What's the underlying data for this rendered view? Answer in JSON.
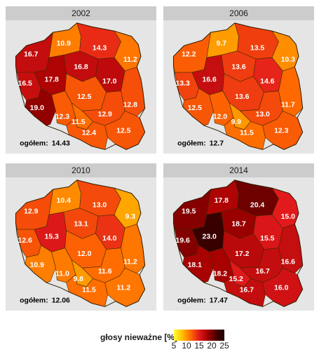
{
  "chart_data": [
    {
      "type": "heatmap",
      "title": "2002",
      "total_label": "ogółem:",
      "total_value": "14.43",
      "regions": [
        {
          "label": "16.7",
          "value": 16.7
        },
        {
          "label": "10.9",
          "value": 10.9
        },
        {
          "label": "14.3",
          "value": 14.3
        },
        {
          "label": "11.2",
          "value": 11.2
        },
        {
          "label": "16.5",
          "value": 16.5
        },
        {
          "label": "17.8",
          "value": 17.8
        },
        {
          "label": "16.8",
          "value": 16.8
        },
        {
          "label": "17.0",
          "value": 17.0
        },
        {
          "label": "12.5",
          "value": 12.5
        },
        {
          "label": "12.8",
          "value": 12.8
        },
        {
          "label": "19.0",
          "value": 19.0
        },
        {
          "label": "12.9",
          "value": 12.9
        },
        {
          "label": "12.3",
          "value": 12.3
        },
        {
          "label": "11.5",
          "value": 11.5
        },
        {
          "label": "12.4",
          "value": 12.4
        },
        {
          "label": "12.5",
          "value": 12.5
        }
      ]
    },
    {
      "type": "heatmap",
      "title": "2006",
      "total_label": "ogółem:",
      "total_value": "12.7",
      "regions": [
        {
          "label": "12.2",
          "value": 12.2
        },
        {
          "label": "9.7",
          "value": 9.7
        },
        {
          "label": "13.5",
          "value": 13.5
        },
        {
          "label": "10.3",
          "value": 10.3
        },
        {
          "label": "13.3",
          "value": 13.3
        },
        {
          "label": "16.6",
          "value": 16.6
        },
        {
          "label": "13.6",
          "value": 13.6
        },
        {
          "label": "14.6",
          "value": 14.6
        },
        {
          "label": "13.6",
          "value": 13.6
        },
        {
          "label": "11.7",
          "value": 11.7
        },
        {
          "label": "12.5",
          "value": 12.5
        },
        {
          "label": "13.0",
          "value": 13.0
        },
        {
          "label": "12.0",
          "value": 12.0
        },
        {
          "label": "9.9",
          "value": 9.9
        },
        {
          "label": "11.5",
          "value": 11.5
        },
        {
          "label": "12.3",
          "value": 12.3
        }
      ]
    },
    {
      "type": "heatmap",
      "title": "2010",
      "total_label": "ogółem:",
      "total_value": "12.06",
      "regions": [
        {
          "label": "12.9",
          "value": 12.9
        },
        {
          "label": "10.4",
          "value": 10.4
        },
        {
          "label": "13.0",
          "value": 13.0
        },
        {
          "label": "9.3",
          "value": 9.3
        },
        {
          "label": "12.6",
          "value": 12.6
        },
        {
          "label": "15.3",
          "value": 15.3
        },
        {
          "label": "13.1",
          "value": 13.1
        },
        {
          "label": "14.0",
          "value": 14.0
        },
        {
          "label": "12.0",
          "value": 12.0
        },
        {
          "label": "11.2",
          "value": 11.2
        },
        {
          "label": "10.9",
          "value": 10.9
        },
        {
          "label": "11.6",
          "value": 11.6
        },
        {
          "label": "11.0",
          "value": 11.0
        },
        {
          "label": "9.8",
          "value": 9.8
        },
        {
          "label": "11.5",
          "value": 11.5
        },
        {
          "label": "11.2",
          "value": 11.2
        }
      ]
    },
    {
      "type": "heatmap",
      "title": "2014",
      "total_label": "ogółem:",
      "total_value": "17.47",
      "regions": [
        {
          "label": "19.5",
          "value": 19.5
        },
        {
          "label": "17.8",
          "value": 17.8
        },
        {
          "label": "20.4",
          "value": 20.4
        },
        {
          "label": "15.0",
          "value": 15.0
        },
        {
          "label": "19.6",
          "value": 19.6
        },
        {
          "label": "23.0",
          "value": 23.0
        },
        {
          "label": "18.7",
          "value": 18.7
        },
        {
          "label": "15.5",
          "value": 15.5
        },
        {
          "label": "17.2",
          "value": 17.2
        },
        {
          "label": "16.6",
          "value": 16.6
        },
        {
          "label": "18.1",
          "value": 18.1
        },
        {
          "label": "16.7",
          "value": 16.7
        },
        {
          "label": "18.2",
          "value": 18.2
        },
        {
          "label": "15.2",
          "value": 15.2
        },
        {
          "label": "16.7",
          "value": 16.7
        },
        {
          "label": "16.0",
          "value": 16.0
        }
      ]
    }
  ],
  "legend": {
    "title": "głosy nieważne [%]",
    "ticks": [
      "5",
      "10",
      "15",
      "20",
      "25"
    ],
    "range": [
      5,
      25
    ],
    "colors": [
      "#ffff33",
      "#ffbf00",
      "#ff6a00",
      "#e31a1c",
      "#a50000",
      "#4d0000",
      "#1a0000"
    ]
  }
}
